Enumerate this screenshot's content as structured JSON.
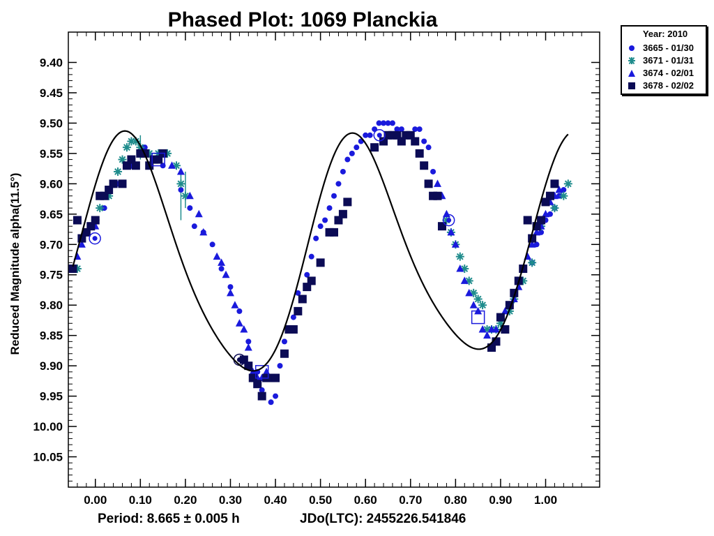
{
  "chart_data": {
    "type": "scatter",
    "title": "Phased Plot: 1069 Planckia",
    "ylabel": "Reduced Magnitude alpha(11.5°)",
    "xlabel": "",
    "xlim": [
      -0.06,
      1.12
    ],
    "ylim": [
      10.1,
      9.35
    ],
    "y_inverted": true,
    "grid": false,
    "legend_position": "top-right-outside",
    "x_ticks": [
      "0.00",
      "0.10",
      "0.20",
      "0.30",
      "0.40",
      "0.50",
      "0.60",
      "0.70",
      "0.80",
      "0.90",
      "1.00"
    ],
    "y_ticks": [
      "9.40",
      "9.45",
      "9.50",
      "9.55",
      "9.60",
      "9.65",
      "9.70",
      "9.75",
      "9.80",
      "9.85",
      "9.90",
      "9.95",
      "10.00",
      "10.05"
    ],
    "legend_title": "Year: 2010",
    "footer_period": "Period: 8.665 ± 0.005 h",
    "footer_jd": "JDo(LTC): 2455226.541846",
    "series": [
      {
        "name": "3665 - 01/30",
        "marker": "circle",
        "color": "#1a1adc",
        "points": [
          [
            0.02,
            9.64
          ],
          [
            0.05,
            9.6
          ],
          [
            0.08,
            9.56
          ],
          [
            0.11,
            9.54
          ],
          [
            0.15,
            9.57
          ],
          [
            0.19,
            9.61
          ],
          [
            0.21,
            9.64
          ],
          [
            0.22,
            9.67
          ],
          [
            0.24,
            9.68
          ],
          [
            0.26,
            9.7
          ],
          [
            0.28,
            9.74
          ],
          [
            0.3,
            9.77
          ],
          [
            0.32,
            9.81
          ],
          [
            0.34,
            9.86
          ],
          [
            0.36,
            9.91
          ],
          [
            0.37,
            9.94
          ],
          [
            0.39,
            9.96
          ],
          [
            0.4,
            9.95
          ],
          [
            0.41,
            9.9
          ],
          [
            0.42,
            9.86
          ],
          [
            0.44,
            9.82
          ],
          [
            0.45,
            9.78
          ],
          [
            0.47,
            9.75
          ],
          [
            0.48,
            9.72
          ],
          [
            0.49,
            9.69
          ],
          [
            0.5,
            9.67
          ],
          [
            0.51,
            9.66
          ],
          [
            0.52,
            9.64
          ],
          [
            0.53,
            9.62
          ],
          [
            0.54,
            9.6
          ],
          [
            0.55,
            9.58
          ],
          [
            0.56,
            9.56
          ],
          [
            0.57,
            9.55
          ],
          [
            0.58,
            9.54
          ],
          [
            0.59,
            9.53
          ],
          [
            0.6,
            9.52
          ],
          [
            0.61,
            9.52
          ],
          [
            0.62,
            9.51
          ],
          [
            0.63,
            9.5
          ],
          [
            0.64,
            9.5
          ],
          [
            0.65,
            9.5
          ],
          [
            0.66,
            9.5
          ],
          [
            0.67,
            9.51
          ],
          [
            0.68,
            9.51
          ],
          [
            0.71,
            9.51
          ],
          [
            0.72,
            9.51
          ],
          [
            0.73,
            9.53
          ],
          [
            0.74,
            9.54
          ],
          [
            0.75,
            9.58
          ],
          [
            0.97,
            9.73
          ],
          [
            0.98,
            9.7
          ],
          [
            0.99,
            9.68
          ],
          [
            1.0,
            9.66
          ],
          [
            1.01,
            9.65
          ],
          [
            1.02,
            9.64
          ],
          [
            1.03,
            9.62
          ],
          [
            1.04,
            9.61
          ]
        ]
      },
      {
        "name": "3671 - 01/31",
        "marker": "asterisk",
        "color": "#1f8c8c",
        "points": [
          [
            -0.04,
            9.74
          ],
          [
            0.0,
            9.66
          ],
          [
            0.01,
            9.64
          ],
          [
            0.03,
            9.62
          ],
          [
            0.05,
            9.58
          ],
          [
            0.06,
            9.56
          ],
          [
            0.07,
            9.54
          ],
          [
            0.08,
            9.53
          ],
          [
            0.09,
            9.53
          ],
          [
            0.1,
            9.54
          ],
          [
            0.12,
            9.55
          ],
          [
            0.14,
            9.55
          ],
          [
            0.16,
            9.55
          ],
          [
            0.18,
            9.57
          ],
          [
            0.19,
            9.6
          ],
          [
            0.2,
            9.62
          ],
          [
            0.78,
            9.66
          ],
          [
            0.79,
            9.68
          ],
          [
            0.8,
            9.7
          ],
          [
            0.81,
            9.72
          ],
          [
            0.82,
            9.74
          ],
          [
            0.83,
            9.76
          ],
          [
            0.84,
            9.78
          ],
          [
            0.85,
            9.79
          ],
          [
            0.86,
            9.8
          ],
          [
            0.87,
            9.84
          ],
          [
            0.88,
            9.84
          ],
          [
            0.89,
            9.84
          ],
          [
            0.9,
            9.83
          ],
          [
            0.92,
            9.81
          ],
          [
            0.93,
            9.79
          ],
          [
            0.95,
            9.76
          ],
          [
            0.97,
            9.73
          ],
          [
            0.99,
            9.67
          ],
          [
            1.02,
            9.64
          ],
          [
            1.04,
            9.62
          ],
          [
            1.05,
            9.6
          ]
        ]
      },
      {
        "name": "3674 - 02/01",
        "marker": "triangle",
        "color": "#1a1adc",
        "points": [
          [
            -0.04,
            9.72
          ],
          [
            -0.03,
            9.7
          ],
          [
            0.0,
            9.67
          ],
          [
            0.04,
            9.6
          ],
          [
            0.08,
            9.57
          ],
          [
            0.11,
            9.55
          ],
          [
            0.14,
            9.56
          ],
          [
            0.17,
            9.57
          ],
          [
            0.19,
            9.58
          ],
          [
            0.21,
            9.62
          ],
          [
            0.23,
            9.65
          ],
          [
            0.24,
            9.68
          ],
          [
            0.27,
            9.72
          ],
          [
            0.28,
            9.73
          ],
          [
            0.29,
            9.75
          ],
          [
            0.3,
            9.78
          ],
          [
            0.31,
            9.8
          ],
          [
            0.32,
            9.83
          ],
          [
            0.33,
            9.84
          ],
          [
            0.34,
            9.87
          ],
          [
            0.35,
            9.91
          ],
          [
            0.36,
            9.92
          ],
          [
            0.37,
            9.92
          ],
          [
            0.38,
            9.91
          ],
          [
            0.76,
            9.6
          ],
          [
            0.77,
            9.62
          ],
          [
            0.78,
            9.65
          ],
          [
            0.79,
            9.68
          ],
          [
            0.8,
            9.7
          ],
          [
            0.81,
            9.74
          ],
          [
            0.82,
            9.76
          ],
          [
            0.83,
            9.78
          ],
          [
            0.84,
            9.8
          ],
          [
            0.85,
            9.81
          ],
          [
            0.86,
            9.84
          ],
          [
            0.87,
            9.85
          ],
          [
            0.88,
            9.84
          ],
          [
            0.89,
            9.84
          ],
          [
            0.9,
            9.82
          ],
          [
            0.91,
            9.81
          ],
          [
            0.92,
            9.8
          ],
          [
            0.93,
            9.79
          ],
          [
            0.94,
            9.77
          ],
          [
            0.95,
            9.74
          ],
          [
            0.96,
            9.72
          ],
          [
            0.97,
            9.7
          ],
          [
            0.98,
            9.68
          ],
          [
            0.99,
            9.67
          ],
          [
            1.0,
            9.65
          ],
          [
            1.01,
            9.63
          ],
          [
            1.02,
            9.62
          ],
          [
            1.03,
            9.61
          ]
        ]
      },
      {
        "name": "3678 - 02/02",
        "marker": "square",
        "color": "#0b0b55",
        "points": [
          [
            -0.05,
            9.74
          ],
          [
            -0.04,
            9.66
          ],
          [
            -0.03,
            9.69
          ],
          [
            -0.02,
            9.68
          ],
          [
            -0.01,
            9.67
          ],
          [
            0.0,
            9.66
          ],
          [
            0.01,
            9.62
          ],
          [
            0.02,
            9.62
          ],
          [
            0.03,
            9.61
          ],
          [
            0.04,
            9.6
          ],
          [
            0.06,
            9.6
          ],
          [
            0.07,
            9.57
          ],
          [
            0.08,
            9.56
          ],
          [
            0.09,
            9.57
          ],
          [
            0.1,
            9.55
          ],
          [
            0.11,
            9.55
          ],
          [
            0.12,
            9.57
          ],
          [
            0.13,
            9.56
          ],
          [
            0.14,
            9.56
          ],
          [
            0.15,
            9.55
          ],
          [
            0.33,
            9.89
          ],
          [
            0.34,
            9.9
          ],
          [
            0.35,
            9.92
          ],
          [
            0.36,
            9.93
          ],
          [
            0.37,
            9.95
          ],
          [
            0.38,
            9.92
          ],
          [
            0.39,
            9.92
          ],
          [
            0.4,
            9.92
          ],
          [
            0.42,
            9.88
          ],
          [
            0.43,
            9.84
          ],
          [
            0.44,
            9.84
          ],
          [
            0.45,
            9.81
          ],
          [
            0.46,
            9.79
          ],
          [
            0.47,
            9.77
          ],
          [
            0.48,
            9.76
          ],
          [
            0.5,
            9.73
          ],
          [
            0.52,
            9.68
          ],
          [
            0.53,
            9.68
          ],
          [
            0.54,
            9.66
          ],
          [
            0.55,
            9.65
          ],
          [
            0.56,
            9.63
          ],
          [
            0.62,
            9.54
          ],
          [
            0.64,
            9.53
          ],
          [
            0.65,
            9.52
          ],
          [
            0.66,
            9.52
          ],
          [
            0.67,
            9.52
          ],
          [
            0.68,
            9.53
          ],
          [
            0.69,
            9.52
          ],
          [
            0.7,
            9.52
          ],
          [
            0.71,
            9.53
          ],
          [
            0.72,
            9.55
          ],
          [
            0.73,
            9.57
          ],
          [
            0.74,
            9.6
          ],
          [
            0.75,
            9.62
          ],
          [
            0.76,
            9.62
          ],
          [
            0.77,
            9.67
          ],
          [
            0.88,
            9.87
          ],
          [
            0.89,
            9.86
          ],
          [
            0.9,
            9.82
          ],
          [
            0.91,
            9.84
          ],
          [
            0.92,
            9.8
          ],
          [
            0.93,
            9.78
          ],
          [
            0.94,
            9.76
          ],
          [
            0.95,
            9.74
          ],
          [
            0.96,
            9.66
          ],
          [
            0.97,
            9.69
          ],
          [
            0.98,
            9.67
          ],
          [
            0.99,
            9.66
          ],
          [
            1.0,
            9.63
          ],
          [
            1.01,
            9.62
          ],
          [
            1.02,
            9.6
          ]
        ]
      }
    ],
    "open_markers": [
      {
        "shape": "circle",
        "x": -0.001,
        "y": 9.69,
        "color": "#1a1adc"
      },
      {
        "shape": "circle",
        "x": 0.631,
        "y": 9.52,
        "color": "#1a1adc"
      },
      {
        "shape": "circle",
        "x": 0.785,
        "y": 9.66,
        "color": "#1a1adc"
      },
      {
        "shape": "circle",
        "x": 0.32,
        "y": 9.89,
        "color": "#0b0b55"
      },
      {
        "shape": "square",
        "x": 0.37,
        "y": 9.91,
        "color": "#1a1adc"
      },
      {
        "shape": "square",
        "x": 0.85,
        "y": 9.82,
        "color": "#1a1adc"
      },
      {
        "shape": "square",
        "x": 0.14,
        "y": 9.56,
        "color": "#1a1adc"
      }
    ],
    "error_bars": [
      {
        "x": 0.19,
        "y": 9.62,
        "lo": 9.58,
        "hi": 9.66,
        "color": "#1f8c8c"
      },
      {
        "x": 0.2,
        "y": 9.61,
        "lo": 9.58,
        "hi": 9.64,
        "color": "#1f8c8c"
      },
      {
        "x": 0.1,
        "y": 9.54,
        "lo": 9.52,
        "hi": 9.56,
        "color": "#1f8c8c"
      }
    ],
    "fit_curve": {
      "color": "#000000",
      "x_range": [
        -0.05,
        1.05
      ],
      "mean": 9.72,
      "terms": [
        {
          "harmonic": 2,
          "amp": 0.184,
          "phase_deg": 236.9
        },
        {
          "harmonic": 1,
          "amp": 0.018,
          "phase_deg": 120.0
        },
        {
          "harmonic": 4,
          "amp": 0.026,
          "phase_deg": 250.0
        }
      ]
    }
  }
}
